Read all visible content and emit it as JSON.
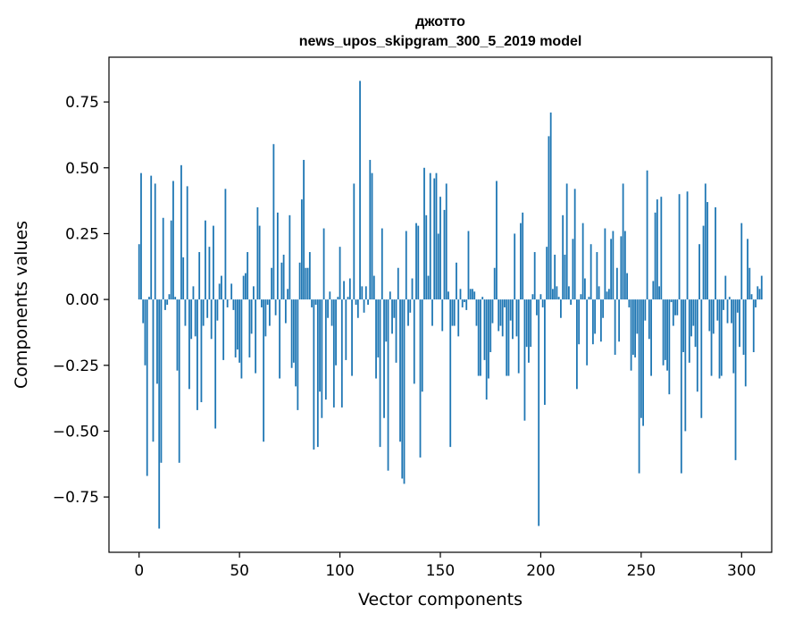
{
  "chart_data": {
    "type": "bar",
    "title": "джотто",
    "subtitle": "news_upos_skipgram_300_5_2019 model",
    "xlabel": "Vector components",
    "ylabel": "Components values",
    "xlim": [
      -15,
      315
    ],
    "ylim": [
      -0.96,
      0.92
    ],
    "xticks": [
      0,
      50,
      100,
      150,
      200,
      250,
      300
    ],
    "xtick_labels": [
      "0",
      "50",
      "100",
      "150",
      "200",
      "250",
      "300"
    ],
    "yticks": [
      0.75,
      0.5,
      0.25,
      0.0,
      -0.25,
      -0.5,
      -0.75
    ],
    "ytick_labels": [
      "0.75",
      "0.50",
      "0.25",
      "0.00",
      "−0.25",
      "−0.50",
      "−0.75"
    ],
    "bar_color": "#1f77b4",
    "values": [
      0.21,
      0.48,
      -0.09,
      -0.25,
      -0.67,
      0.01,
      0.47,
      -0.54,
      0.44,
      -0.32,
      -0.87,
      -0.62,
      0.31,
      -0.04,
      -0.02,
      0.02,
      0.3,
      0.45,
      0.01,
      -0.27,
      -0.62,
      0.51,
      0.16,
      -0.1,
      0.43,
      -0.34,
      -0.15,
      0.05,
      -0.14,
      -0.42,
      0.18,
      -0.39,
      -0.1,
      0.3,
      -0.07,
      0.2,
      -0.15,
      0.28,
      -0.49,
      -0.08,
      0.06,
      0.09,
      -0.23,
      0.42,
      -0.03,
      0.0,
      0.06,
      -0.04,
      -0.22,
      -0.19,
      -0.24,
      -0.3,
      0.09,
      0.1,
      0.18,
      -0.22,
      -0.13,
      0.05,
      -0.28,
      0.35,
      0.28,
      -0.03,
      -0.54,
      -0.14,
      -0.02,
      -0.1,
      0.12,
      0.59,
      -0.06,
      0.33,
      -0.3,
      0.14,
      0.17,
      -0.09,
      0.04,
      0.32,
      -0.26,
      -0.24,
      -0.33,
      -0.42,
      0.14,
      0.38,
      0.53,
      0.12,
      0.12,
      0.18,
      -0.03,
      -0.57,
      -0.02,
      -0.56,
      -0.35,
      -0.45,
      0.27,
      -0.38,
      -0.07,
      0.03,
      -0.1,
      -0.41,
      -0.25,
      0.01,
      0.2,
      -0.41,
      0.07,
      -0.23,
      0.01,
      0.08,
      -0.29,
      0.44,
      -0.02,
      -0.07,
      0.83,
      0.05,
      -0.05,
      0.05,
      -0.02,
      0.53,
      0.48,
      0.09,
      -0.3,
      -0.22,
      -0.56,
      0.27,
      -0.45,
      -0.16,
      -0.65,
      0.03,
      -0.13,
      -0.07,
      -0.24,
      0.12,
      -0.54,
      -0.68,
      -0.7,
      0.26,
      -0.1,
      -0.05,
      0.08,
      -0.32,
      0.29,
      0.28,
      -0.6,
      -0.35,
      0.5,
      0.32,
      0.09,
      0.48,
      -0.1,
      0.46,
      0.48,
      0.25,
      0.39,
      -0.12,
      0.34,
      0.44,
      0.03,
      -0.56,
      -0.1,
      -0.1,
      0.14,
      -0.14,
      0.04,
      -0.03,
      -0.01,
      -0.04,
      0.26,
      0.04,
      0.04,
      0.03,
      -0.1,
      -0.29,
      -0.29,
      0.01,
      -0.23,
      -0.38,
      -0.3,
      -0.2,
      -0.09,
      0.12,
      0.45,
      -0.12,
      -0.1,
      -0.14,
      -0.03,
      -0.29,
      -0.29,
      -0.08,
      -0.15,
      0.25,
      -0.14,
      -0.28,
      0.29,
      0.33,
      -0.46,
      -0.18,
      -0.24,
      -0.18,
      0.02,
      0.18,
      -0.06,
      -0.86,
      0.02,
      -0.03,
      -0.4,
      0.2,
      0.62,
      0.71,
      0.04,
      0.17,
      0.05,
      0.01,
      -0.07,
      0.32,
      0.17,
      0.44,
      0.05,
      -0.02,
      0.23,
      0.42,
      -0.34,
      -0.17,
      0.02,
      0.29,
      0.08,
      -0.25,
      0.01,
      0.21,
      -0.17,
      -0.13,
      0.18,
      0.05,
      -0.16,
      -0.07,
      0.27,
      0.03,
      0.04,
      0.23,
      0.26,
      -0.21,
      0.12,
      -0.16,
      0.24,
      0.44,
      0.26,
      0.1,
      -0.03,
      -0.27,
      -0.21,
      -0.22,
      -0.13,
      -0.66,
      -0.45,
      -0.48,
      -0.08,
      0.49,
      -0.15,
      -0.29,
      0.07,
      0.33,
      0.38,
      0.05,
      0.39,
      -0.25,
      -0.23,
      -0.27,
      -0.36,
      -0.01,
      -0.1,
      -0.06,
      -0.06,
      0.4,
      -0.66,
      -0.2,
      -0.5,
      0.41,
      -0.24,
      -0.14,
      -0.1,
      -0.18,
      -0.35,
      0.21,
      -0.45,
      0.28,
      0.44,
      0.37,
      -0.12,
      -0.29,
      -0.13,
      0.35,
      -0.08,
      -0.3,
      -0.29,
      -0.04,
      0.09,
      -0.09,
      0.01,
      -0.09,
      -0.28,
      -0.61,
      -0.05,
      -0.18,
      0.29,
      -0.21,
      -0.33,
      0.23,
      0.12,
      0.02,
      -0.2,
      -0.03,
      0.05,
      0.04,
      0.09
    ]
  }
}
